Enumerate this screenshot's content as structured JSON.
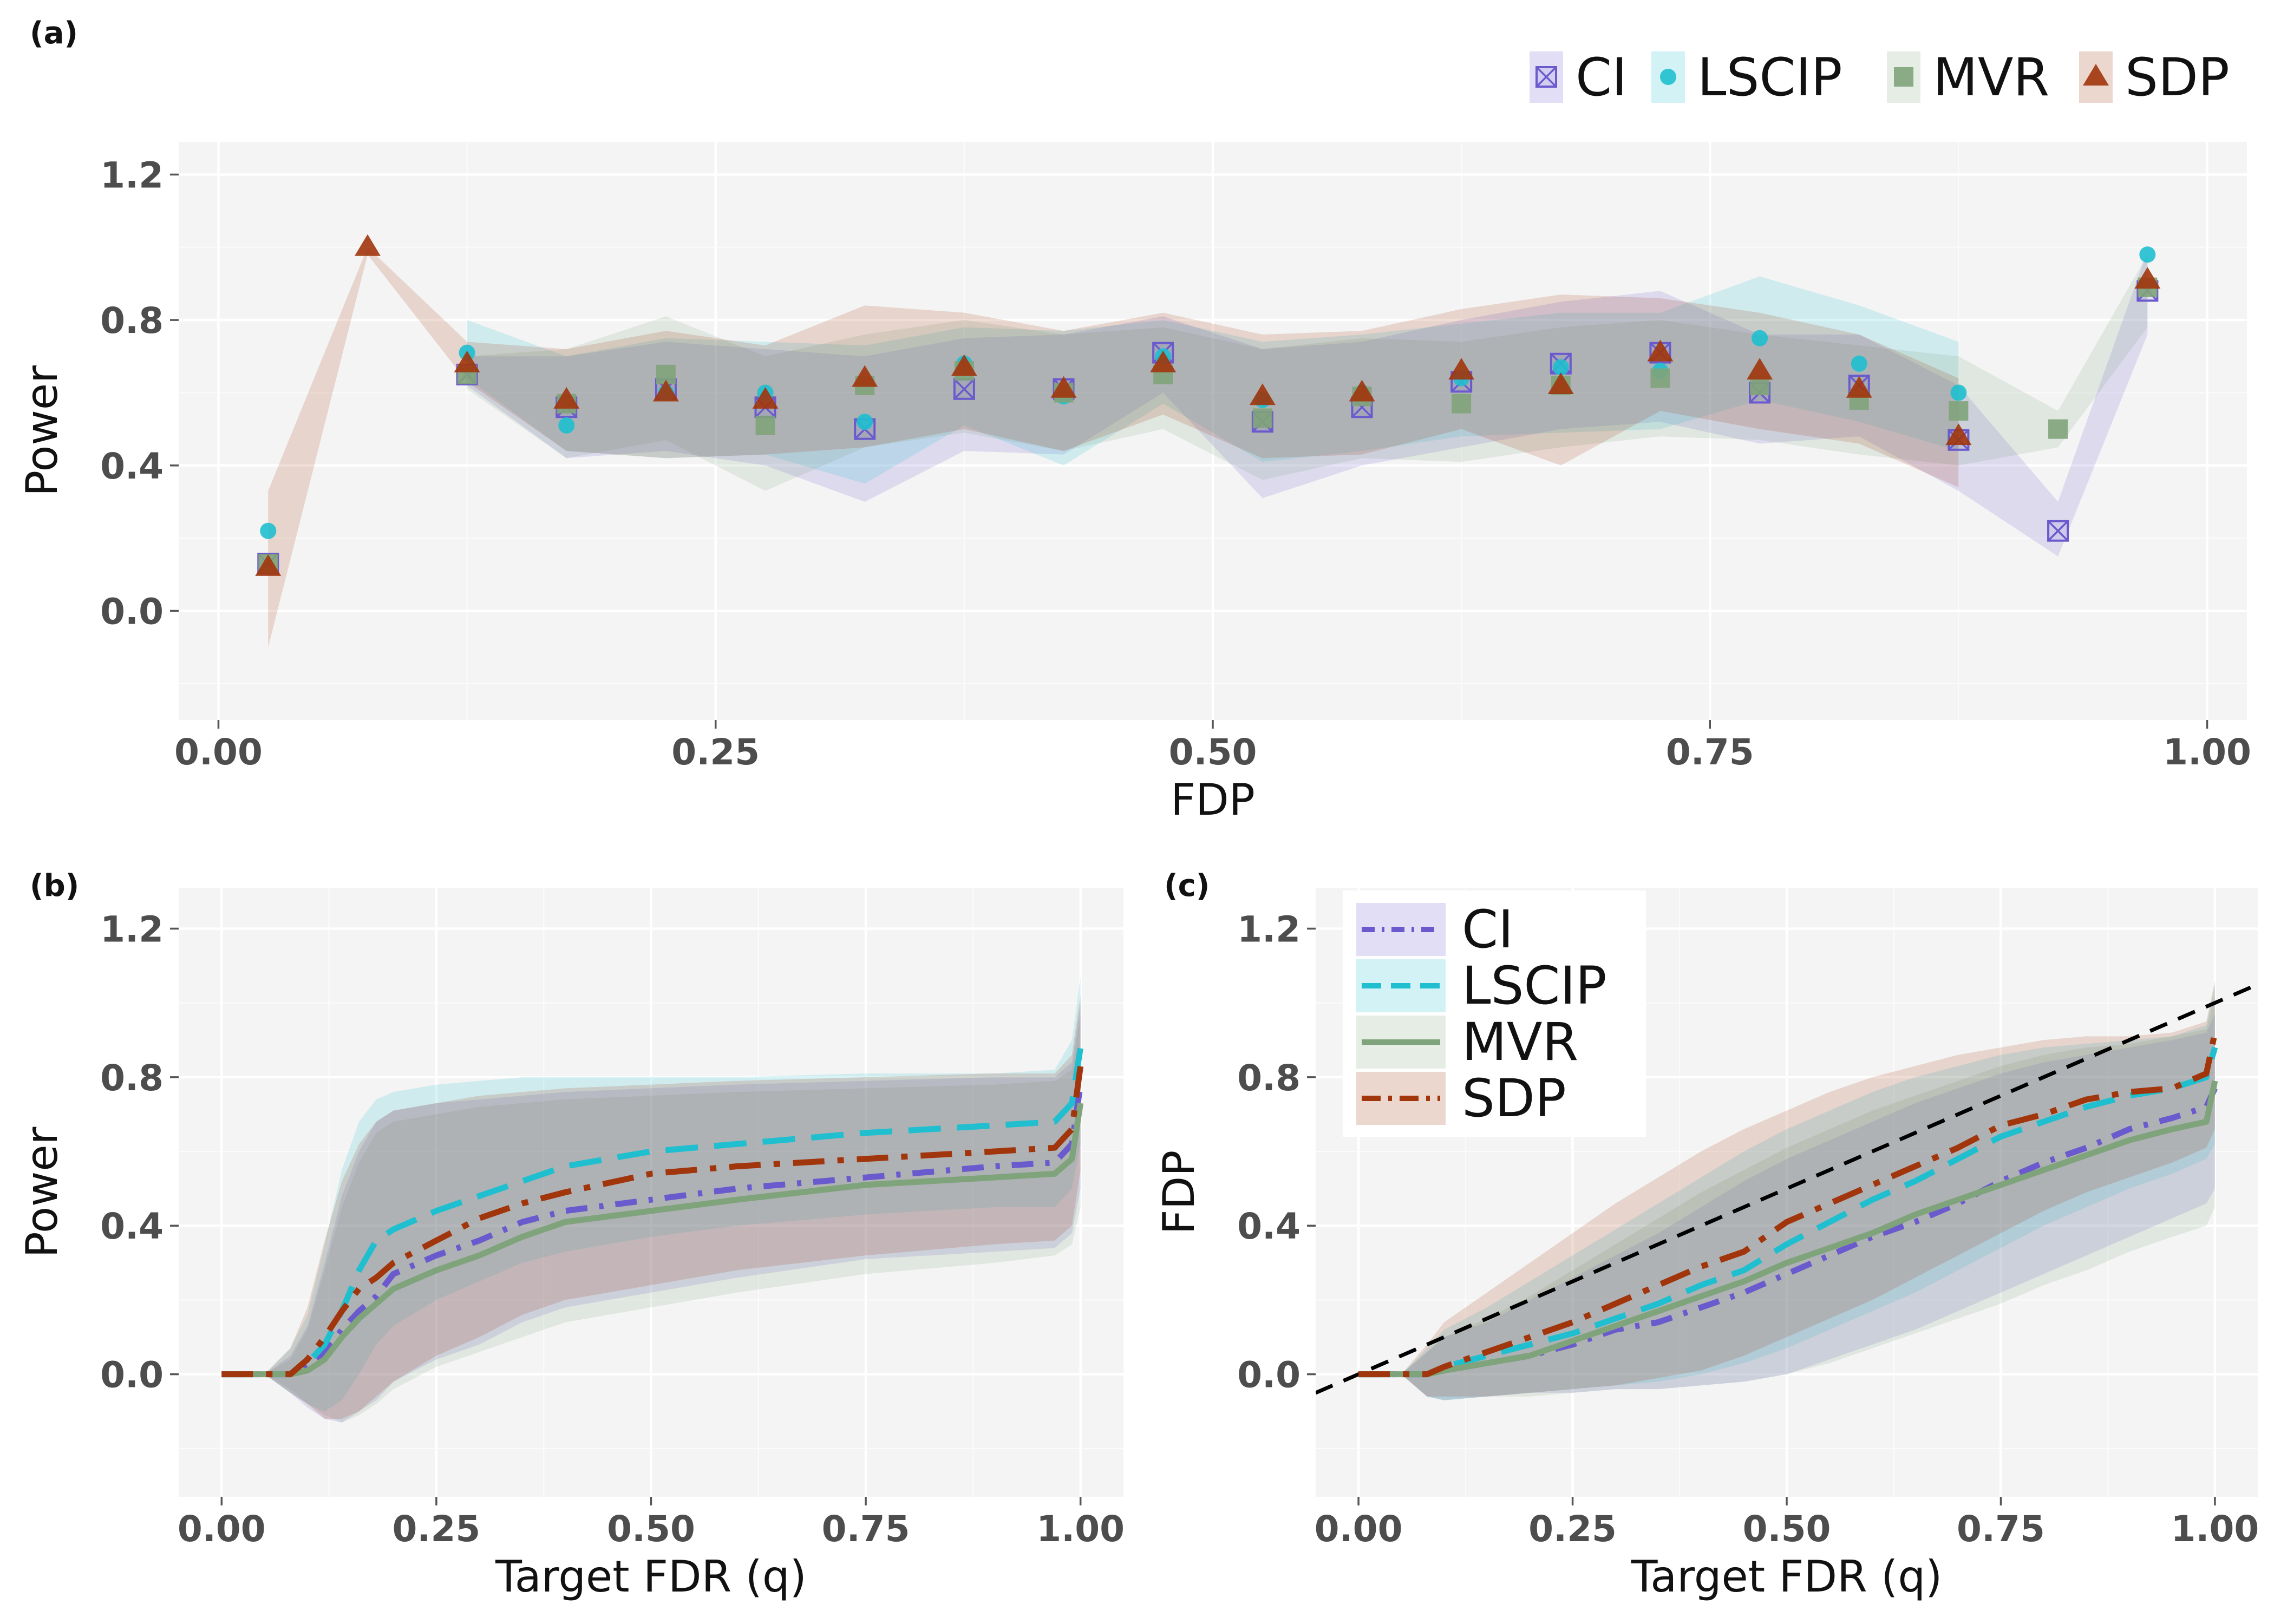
{
  "figure": {
    "panel_tags": [
      "(a)",
      "(b)",
      "(c)"
    ]
  },
  "methods": [
    {
      "name": "CI",
      "color": "#6a5acd",
      "marker": "square-cross",
      "dash": "dashdot"
    },
    {
      "name": "LSCIP",
      "color": "#1fbfcf",
      "marker": "circle",
      "dash": "dashed"
    },
    {
      "name": "MVR",
      "color": "#7fa37a",
      "marker": "square",
      "dash": "solid"
    },
    {
      "name": "SDP",
      "color": "#a1350c",
      "marker": "triangle",
      "dash": "longdashdot"
    }
  ],
  "chart_data": [
    {
      "id": "a",
      "type": "scatter",
      "title": "",
      "xlabel": "FDP",
      "ylabel": "Power",
      "xlim": [
        -0.02,
        1.02
      ],
      "ylim": [
        -0.3,
        1.29
      ],
      "xticks": [
        "0.00",
        "0.25",
        "0.50",
        "0.75",
        "1.00"
      ],
      "yticks": [
        "0.0",
        "0.4",
        "0.8",
        "1.2"
      ],
      "legend_position": "top-right",
      "x": [
        0.025,
        0.075,
        0.125,
        0.175,
        0.225,
        0.275,
        0.325,
        0.375,
        0.425,
        0.475,
        0.525,
        0.575,
        0.625,
        0.675,
        0.725,
        0.775,
        0.825,
        0.875,
        0.925,
        0.97
      ],
      "series": [
        {
          "name": "CI",
          "values": [
            0.13,
            null,
            0.65,
            0.56,
            0.61,
            0.56,
            0.5,
            0.61,
            0.61,
            0.71,
            0.52,
            0.56,
            0.63,
            0.68,
            0.71,
            0.6,
            0.62,
            0.47,
            0.22,
            0.88
          ],
          "lower": [
            -0.09,
            null,
            0.62,
            0.42,
            0.44,
            0.4,
            0.3,
            0.44,
            0.43,
            0.6,
            0.31,
            0.4,
            0.45,
            0.5,
            0.52,
            0.46,
            0.48,
            0.33,
            0.15,
            0.76
          ],
          "upper": [
            0.33,
            null,
            0.7,
            0.7,
            0.74,
            0.72,
            0.7,
            0.75,
            0.76,
            0.81,
            0.72,
            0.74,
            0.8,
            0.85,
            0.88,
            0.76,
            0.76,
            0.62,
            0.3,
            0.99
          ]
        },
        {
          "name": "LSCIP",
          "values": [
            0.22,
            null,
            0.71,
            0.51,
            0.6,
            0.6,
            0.52,
            0.68,
            0.59,
            0.7,
            0.58,
            0.6,
            0.64,
            0.67,
            0.66,
            0.75,
            0.68,
            0.6,
            null,
            0.98
          ],
          "lower": [
            -0.06,
            null,
            0.64,
            0.44,
            0.42,
            0.43,
            0.35,
            0.51,
            0.4,
            0.57,
            0.41,
            0.44,
            0.48,
            0.49,
            0.5,
            0.58,
            0.52,
            0.44,
            null,
            0.9
          ],
          "upper": [
            0.54,
            null,
            0.8,
            0.7,
            0.75,
            0.74,
            0.73,
            0.78,
            0.77,
            0.8,
            0.74,
            0.76,
            0.79,
            0.82,
            0.82,
            0.92,
            0.84,
            0.74,
            null,
            1.0
          ]
        },
        {
          "name": "MVR",
          "values": [
            0.13,
            null,
            0.65,
            0.57,
            0.65,
            0.51,
            0.62,
            0.66,
            0.6,
            0.65,
            0.53,
            0.59,
            0.57,
            0.62,
            0.64,
            0.62,
            0.58,
            0.55,
            0.5,
            0.89
          ],
          "lower": [
            -0.09,
            null,
            0.61,
            0.42,
            0.47,
            0.33,
            0.45,
            0.49,
            0.44,
            0.5,
            0.36,
            0.42,
            0.41,
            0.45,
            0.48,
            0.47,
            0.43,
            0.4,
            0.45,
            0.78
          ],
          "upper": [
            0.34,
            null,
            0.7,
            0.72,
            0.81,
            0.7,
            0.76,
            0.8,
            0.76,
            0.78,
            0.72,
            0.75,
            0.74,
            0.78,
            0.8,
            0.76,
            0.73,
            0.7,
            0.55,
            0.98
          ]
        },
        {
          "name": "SDP",
          "values": [
            0.12,
            1.0,
            0.68,
            0.58,
            0.6,
            0.58,
            0.64,
            0.67,
            0.61,
            0.68,
            0.59,
            0.6,
            0.66,
            0.62,
            0.71,
            0.66,
            0.61,
            0.48,
            null,
            0.91
          ],
          "lower": [
            -0.1,
            0.98,
            0.63,
            0.44,
            0.42,
            0.43,
            0.45,
            0.5,
            0.44,
            0.54,
            0.42,
            0.43,
            0.5,
            0.4,
            0.55,
            0.5,
            0.46,
            0.34,
            null,
            0.82
          ],
          "upper": [
            0.33,
            1.0,
            0.74,
            0.72,
            0.77,
            0.73,
            0.84,
            0.82,
            0.77,
            0.82,
            0.76,
            0.77,
            0.83,
            0.87,
            0.86,
            0.82,
            0.76,
            0.64,
            null,
            0.99
          ]
        }
      ]
    },
    {
      "id": "b",
      "type": "line",
      "title": "",
      "xlabel": "Target FDR (q)",
      "ylabel": "Power",
      "xlim": [
        -0.05,
        1.05
      ],
      "ylim": [
        -0.33,
        1.31
      ],
      "xticks": [
        "0.00",
        "0.25",
        "0.50",
        "0.75",
        "1.00"
      ],
      "yticks": [
        "0.0",
        "0.4",
        "0.8",
        "1.2"
      ],
      "x": [
        0.0,
        0.05,
        0.08,
        0.1,
        0.12,
        0.14,
        0.16,
        0.18,
        0.2,
        0.25,
        0.3,
        0.35,
        0.4,
        0.5,
        0.6,
        0.75,
        0.9,
        0.97,
        0.99,
        1.0
      ],
      "series": [
        {
          "name": "CI",
          "values": [
            0.0,
            0.0,
            0.0,
            0.02,
            0.06,
            0.12,
            0.17,
            0.21,
            0.27,
            0.32,
            0.36,
            0.41,
            0.44,
            0.47,
            0.5,
            0.53,
            0.56,
            0.57,
            0.62,
            0.78
          ],
          "lower": [
            0.0,
            0.0,
            -0.05,
            -0.09,
            -0.12,
            -0.13,
            -0.1,
            -0.07,
            -0.02,
            0.04,
            0.08,
            0.14,
            0.18,
            0.22,
            0.26,
            0.31,
            0.33,
            0.34,
            0.38,
            0.5
          ],
          "upper": [
            0.0,
            0.0,
            0.05,
            0.13,
            0.3,
            0.48,
            0.6,
            0.68,
            0.71,
            0.73,
            0.74,
            0.75,
            0.76,
            0.77,
            0.78,
            0.79,
            0.8,
            0.8,
            0.84,
            1.0
          ]
        },
        {
          "name": "LSCIP",
          "values": [
            0.0,
            0.0,
            0.0,
            0.03,
            0.08,
            0.17,
            0.28,
            0.36,
            0.39,
            0.44,
            0.48,
            0.52,
            0.56,
            0.6,
            0.62,
            0.65,
            0.67,
            0.68,
            0.73,
            0.88
          ],
          "lower": [
            0.0,
            0.0,
            -0.05,
            -0.08,
            -0.1,
            -0.07,
            0.0,
            0.08,
            0.13,
            0.2,
            0.25,
            0.3,
            0.33,
            0.37,
            0.4,
            0.43,
            0.45,
            0.45,
            0.5,
            0.62
          ],
          "upper": [
            0.0,
            0.0,
            0.07,
            0.16,
            0.35,
            0.55,
            0.68,
            0.74,
            0.76,
            0.78,
            0.79,
            0.8,
            0.8,
            0.8,
            0.8,
            0.81,
            0.81,
            0.82,
            0.9,
            1.07
          ]
        },
        {
          "name": "MVR",
          "values": [
            0.0,
            0.0,
            0.0,
            0.01,
            0.04,
            0.1,
            0.15,
            0.19,
            0.23,
            0.28,
            0.32,
            0.37,
            0.41,
            0.44,
            0.47,
            0.51,
            0.53,
            0.54,
            0.58,
            0.73
          ],
          "lower": [
            0.0,
            0.0,
            -0.04,
            -0.08,
            -0.11,
            -0.13,
            -0.11,
            -0.08,
            -0.04,
            0.02,
            0.06,
            0.1,
            0.14,
            0.18,
            0.22,
            0.27,
            0.3,
            0.32,
            0.35,
            0.45
          ],
          "upper": [
            0.0,
            0.0,
            0.04,
            0.12,
            0.28,
            0.45,
            0.57,
            0.65,
            0.68,
            0.7,
            0.72,
            0.73,
            0.74,
            0.75,
            0.76,
            0.77,
            0.78,
            0.79,
            0.82,
            0.97
          ]
        },
        {
          "name": "SDP",
          "values": [
            0.0,
            0.0,
            0.0,
            0.04,
            0.1,
            0.17,
            0.23,
            0.26,
            0.3,
            0.36,
            0.42,
            0.46,
            0.49,
            0.54,
            0.56,
            0.58,
            0.6,
            0.61,
            0.66,
            0.83
          ],
          "lower": [
            0.0,
            0.0,
            -0.05,
            -0.08,
            -0.12,
            -0.12,
            -0.1,
            -0.06,
            -0.02,
            0.05,
            0.1,
            0.16,
            0.2,
            0.24,
            0.28,
            0.32,
            0.35,
            0.36,
            0.4,
            0.55
          ],
          "upper": [
            0.0,
            0.0,
            0.07,
            0.18,
            0.36,
            0.52,
            0.62,
            0.68,
            0.71,
            0.73,
            0.75,
            0.76,
            0.77,
            0.78,
            0.79,
            0.8,
            0.81,
            0.81,
            0.86,
            1.02
          ]
        }
      ]
    },
    {
      "id": "c",
      "type": "line",
      "title": "",
      "xlabel": "Target FDR (q)",
      "ylabel": "FDP",
      "xlim": [
        -0.05,
        1.05
      ],
      "ylim": [
        -0.33,
        1.31
      ],
      "xticks": [
        "0.00",
        "0.25",
        "0.50",
        "0.75",
        "1.00"
      ],
      "yticks": [
        "0.0",
        "0.4",
        "0.8",
        "1.2"
      ],
      "legend_position": "top-left",
      "reference_line": {
        "x": [
          -0.05,
          1.05
        ],
        "y": [
          -0.05,
          1.05
        ],
        "style": "dashed",
        "color": "#000000"
      },
      "x": [
        0.0,
        0.05,
        0.08,
        0.1,
        0.15,
        0.2,
        0.25,
        0.3,
        0.35,
        0.4,
        0.45,
        0.5,
        0.55,
        0.6,
        0.65,
        0.7,
        0.75,
        0.8,
        0.85,
        0.9,
        0.95,
        0.99,
        1.0
      ],
      "series": [
        {
          "name": "CI",
          "values": [
            0.0,
            0.0,
            0.0,
            0.01,
            0.03,
            0.05,
            0.08,
            0.12,
            0.14,
            0.18,
            0.22,
            0.27,
            0.32,
            0.37,
            0.41,
            0.46,
            0.52,
            0.57,
            0.61,
            0.66,
            0.69,
            0.72,
            0.77
          ],
          "lower": [
            0.0,
            0.0,
            -0.06,
            -0.07,
            -0.06,
            -0.05,
            -0.05,
            -0.04,
            -0.04,
            -0.03,
            -0.02,
            0.0,
            0.04,
            0.08,
            0.12,
            0.17,
            0.22,
            0.27,
            0.32,
            0.37,
            0.42,
            0.46,
            0.5
          ],
          "upper": [
            0.0,
            0.0,
            0.06,
            0.1,
            0.14,
            0.2,
            0.26,
            0.32,
            0.38,
            0.45,
            0.52,
            0.58,
            0.63,
            0.68,
            0.73,
            0.77,
            0.81,
            0.84,
            0.86,
            0.88,
            0.9,
            0.92,
            0.97
          ]
        },
        {
          "name": "LSCIP",
          "values": [
            0.0,
            0.0,
            0.0,
            0.02,
            0.05,
            0.08,
            0.11,
            0.15,
            0.19,
            0.24,
            0.28,
            0.35,
            0.41,
            0.47,
            0.52,
            0.58,
            0.64,
            0.68,
            0.72,
            0.75,
            0.77,
            0.8,
            0.88
          ],
          "lower": [
            0.0,
            0.0,
            -0.06,
            -0.07,
            -0.06,
            -0.05,
            -0.04,
            -0.03,
            -0.02,
            0.0,
            0.03,
            0.07,
            0.12,
            0.17,
            0.22,
            0.28,
            0.34,
            0.4,
            0.45,
            0.5,
            0.54,
            0.58,
            0.62
          ],
          "upper": [
            0.0,
            0.0,
            0.07,
            0.12,
            0.18,
            0.25,
            0.32,
            0.39,
            0.46,
            0.53,
            0.6,
            0.66,
            0.71,
            0.76,
            0.8,
            0.83,
            0.86,
            0.88,
            0.89,
            0.9,
            0.91,
            0.94,
            1.05
          ]
        },
        {
          "name": "MVR",
          "values": [
            0.0,
            0.0,
            0.0,
            0.01,
            0.03,
            0.05,
            0.09,
            0.13,
            0.17,
            0.21,
            0.25,
            0.3,
            0.34,
            0.38,
            0.43,
            0.47,
            0.51,
            0.55,
            0.59,
            0.63,
            0.66,
            0.68,
            0.79
          ],
          "lower": [
            0.0,
            0.0,
            -0.06,
            -0.07,
            -0.06,
            -0.06,
            -0.05,
            -0.04,
            -0.04,
            -0.03,
            -0.02,
            0.0,
            0.03,
            0.07,
            0.11,
            0.15,
            0.19,
            0.24,
            0.28,
            0.33,
            0.37,
            0.4,
            0.45
          ],
          "upper": [
            0.0,
            0.0,
            0.06,
            0.1,
            0.15,
            0.21,
            0.28,
            0.35,
            0.42,
            0.49,
            0.55,
            0.61,
            0.66,
            0.71,
            0.75,
            0.79,
            0.83,
            0.86,
            0.88,
            0.89,
            0.91,
            0.93,
            1.02
          ]
        },
        {
          "name": "SDP",
          "values": [
            0.0,
            0.0,
            0.0,
            0.02,
            0.06,
            0.1,
            0.14,
            0.19,
            0.24,
            0.29,
            0.33,
            0.41,
            0.46,
            0.51,
            0.56,
            0.61,
            0.67,
            0.7,
            0.74,
            0.76,
            0.77,
            0.81,
            0.92
          ],
          "lower": [
            0.0,
            0.0,
            -0.06,
            -0.06,
            -0.06,
            -0.05,
            -0.04,
            -0.03,
            -0.01,
            0.01,
            0.05,
            0.1,
            0.15,
            0.2,
            0.26,
            0.32,
            0.38,
            0.44,
            0.49,
            0.53,
            0.57,
            0.61,
            0.66
          ],
          "upper": [
            0.0,
            0.0,
            0.08,
            0.14,
            0.22,
            0.3,
            0.38,
            0.46,
            0.53,
            0.6,
            0.66,
            0.71,
            0.76,
            0.8,
            0.83,
            0.86,
            0.88,
            0.9,
            0.91,
            0.91,
            0.92,
            0.95,
            1.06
          ]
        }
      ]
    }
  ]
}
